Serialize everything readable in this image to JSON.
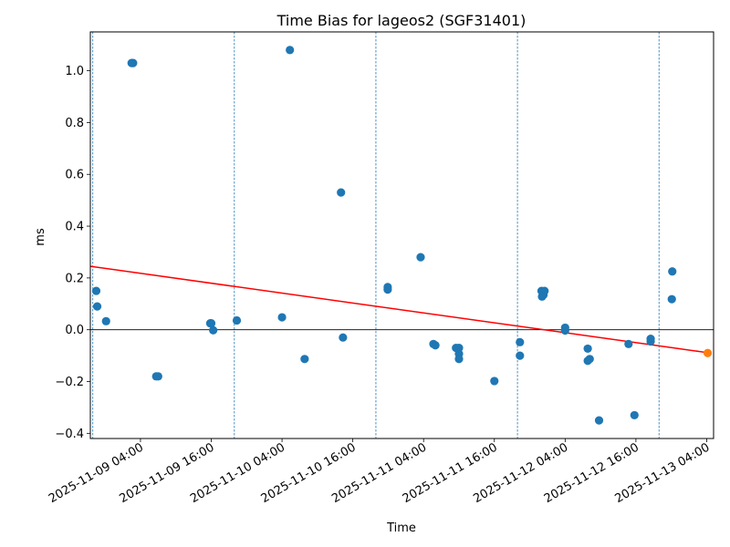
{
  "chart_data": {
    "type": "scatter",
    "title": "Time Bias for lageos2 (SGF31401)",
    "xlabel": "Time",
    "ylabel": "ms",
    "x_range": [
      "2025-11-08 19:30",
      "2025-11-13 05:10"
    ],
    "ylim": [
      -0.42,
      1.15
    ],
    "x_ticks": [
      "2025-11-09 04:00",
      "2025-11-09 16:00",
      "2025-11-10 04:00",
      "2025-11-10 16:00",
      "2025-11-11 04:00",
      "2025-11-11 16:00",
      "2025-11-12 04:00",
      "2025-11-12 16:00",
      "2025-11-13 04:00"
    ],
    "y_ticks": [
      "−0.4",
      "−0.2",
      "0.0",
      "0.2",
      "0.4",
      "0.6",
      "0.8",
      "1.0"
    ],
    "y_tick_values": [
      -0.4,
      -0.2,
      0.0,
      0.2,
      0.4,
      0.6,
      0.8,
      1.0
    ],
    "vlines": [
      "2025-11-08 19:55",
      "2025-11-09 19:55",
      "2025-11-10 19:55",
      "2025-11-11 19:55",
      "2025-11-12 19:55"
    ],
    "hline": 0.0,
    "fit_line": {
      "color": "#ff0000",
      "points": [
        {
          "x": "2025-11-08 19:30",
          "y": 0.245
        },
        {
          "x": "2025-11-13 04:00",
          "y": -0.088
        }
      ]
    },
    "series": [
      {
        "color": "#1f77b4",
        "points": [
          {
            "x": "2025-11-08 20:30",
            "y": 0.15
          },
          {
            "x": "2025-11-08 20:40",
            "y": 0.09
          },
          {
            "x": "2025-11-08 22:10",
            "y": 0.033
          },
          {
            "x": "2025-11-09 02:30",
            "y": 1.03
          },
          {
            "x": "2025-11-09 02:45",
            "y": 1.03
          },
          {
            "x": "2025-11-09 06:40",
            "y": -0.18
          },
          {
            "x": "2025-11-09 07:00",
            "y": -0.18
          },
          {
            "x": "2025-11-09 15:50",
            "y": 0.025
          },
          {
            "x": "2025-11-09 16:00",
            "y": 0.025
          },
          {
            "x": "2025-11-09 16:20",
            "y": -0.002
          },
          {
            "x": "2025-11-09 20:20",
            "y": 0.036
          },
          {
            "x": "2025-11-10 04:00",
            "y": 0.048
          },
          {
            "x": "2025-11-10 05:20",
            "y": 1.08
          },
          {
            "x": "2025-11-10 07:50",
            "y": -0.113
          },
          {
            "x": "2025-11-10 14:00",
            "y": 0.53
          },
          {
            "x": "2025-11-10 14:20",
            "y": -0.03
          },
          {
            "x": "2025-11-10 21:55",
            "y": 0.155
          },
          {
            "x": "2025-11-10 21:55",
            "y": 0.165
          },
          {
            "x": "2025-11-11 03:30",
            "y": 0.28
          },
          {
            "x": "2025-11-11 05:40",
            "y": -0.055
          },
          {
            "x": "2025-11-11 06:00",
            "y": -0.06
          },
          {
            "x": "2025-11-11 09:30",
            "y": -0.07
          },
          {
            "x": "2025-11-11 10:00",
            "y": -0.07
          },
          {
            "x": "2025-11-11 10:00",
            "y": -0.093
          },
          {
            "x": "2025-11-11 10:00",
            "y": -0.113
          },
          {
            "x": "2025-11-11 16:00",
            "y": -0.198
          },
          {
            "x": "2025-11-11 20:20",
            "y": -0.048
          },
          {
            "x": "2025-11-11 20:20",
            "y": -0.1
          },
          {
            "x": "2025-11-12 00:00",
            "y": 0.15
          },
          {
            "x": "2025-11-12 00:05",
            "y": 0.128
          },
          {
            "x": "2025-11-12 00:20",
            "y": 0.135
          },
          {
            "x": "2025-11-12 00:30",
            "y": 0.15
          },
          {
            "x": "2025-11-12 04:00",
            "y": 0.008
          },
          {
            "x": "2025-11-12 04:00",
            "y": -0.003
          },
          {
            "x": "2025-11-12 07:50",
            "y": -0.073
          },
          {
            "x": "2025-11-12 07:50",
            "y": -0.12
          },
          {
            "x": "2025-11-12 08:10",
            "y": -0.113
          },
          {
            "x": "2025-11-12 09:45",
            "y": -0.35
          },
          {
            "x": "2025-11-12 14:45",
            "y": -0.055
          },
          {
            "x": "2025-11-12 15:45",
            "y": -0.33
          },
          {
            "x": "2025-11-12 18:30",
            "y": -0.035
          },
          {
            "x": "2025-11-12 18:30",
            "y": -0.045
          },
          {
            "x": "2025-11-12 22:10",
            "y": 0.225
          },
          {
            "x": "2025-11-12 22:05",
            "y": 0.118
          }
        ]
      },
      {
        "color": "#ff7f0e",
        "points": [
          {
            "x": "2025-11-13 04:10",
            "y": -0.09
          }
        ]
      }
    ]
  }
}
